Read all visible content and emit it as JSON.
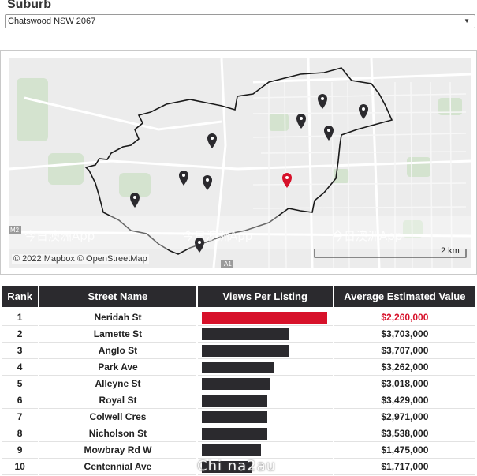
{
  "suburb": {
    "title": "Suburb",
    "selected": "Chatswood NSW 2067"
  },
  "map": {
    "attribution": "© 2022 Mapbox  © OpenStreetMap",
    "scale_label": "2 km",
    "labels": {
      "road_m2": "M2",
      "road_a1": "A1"
    },
    "watermark_text": "今日澳洲App",
    "highlight_color": "#d7112a",
    "pin_color": "#2b2a2e"
  },
  "table": {
    "headers": {
      "rank": "Rank",
      "street": "Street Name",
      "views": "Views Per Listing",
      "value": "Average Estimated Value"
    },
    "rows": [
      {
        "rank": "1",
        "street": "Neridah St",
        "views_fraction": 1.0,
        "value": "$2,260,000",
        "highlight": true
      },
      {
        "rank": "2",
        "street": "Lamette St",
        "views_fraction": 0.69,
        "value": "$3,703,000"
      },
      {
        "rank": "3",
        "street": "Anglo St",
        "views_fraction": 0.69,
        "value": "$3,707,000"
      },
      {
        "rank": "4",
        "street": "Park Ave",
        "views_fraction": 0.57,
        "value": "$3,262,000"
      },
      {
        "rank": "5",
        "street": "Alleyne St",
        "views_fraction": 0.55,
        "value": "$3,018,000"
      },
      {
        "rank": "6",
        "street": "Royal St",
        "views_fraction": 0.52,
        "value": "$3,429,000"
      },
      {
        "rank": "7",
        "street": "Colwell Cres",
        "views_fraction": 0.52,
        "value": "$2,971,000"
      },
      {
        "rank": "8",
        "street": "Nicholson St",
        "views_fraction": 0.52,
        "value": "$3,538,000"
      },
      {
        "rank": "9",
        "street": "Mowbray Rd W",
        "views_fraction": 0.47,
        "value": "$1,475,000"
      },
      {
        "rank": "10",
        "street": "Centennial Ave",
        "views_fraction": 0.4,
        "value": "$1,717,000"
      }
    ]
  },
  "footer_watermark": "Chi na2au"
}
